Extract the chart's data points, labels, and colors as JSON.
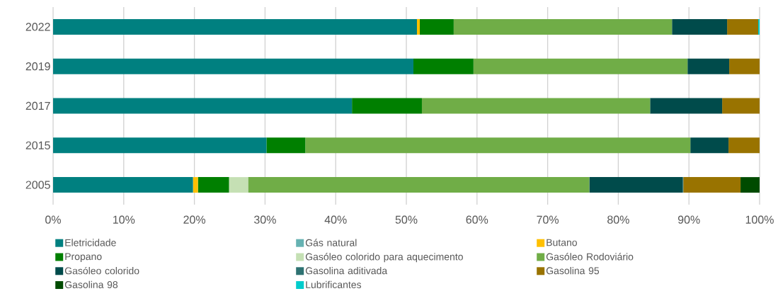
{
  "chart_data": {
    "type": "bar",
    "orientation": "horizontal",
    "stacked": true,
    "categories": [
      "2022",
      "2019",
      "2017",
      "2015",
      "2005"
    ],
    "series": [
      {
        "name": "Eletricidade",
        "color": "#008080",
        "values": [
          51.5,
          51.0,
          42.3,
          30.2,
          19.8
        ]
      },
      {
        "name": "Gás natural",
        "color": "#66b2b2",
        "values": [
          null,
          null,
          null,
          null,
          null
        ]
      },
      {
        "name": "Butano",
        "color": "#ffc000",
        "values": [
          0.4,
          null,
          null,
          null,
          0.7
        ]
      },
      {
        "name": "Propano",
        "color": "#007f00",
        "values": [
          4.8,
          8.5,
          9.9,
          5.5,
          4.4
        ]
      },
      {
        "name": "Gasóleo colorido para aquecimento",
        "color": "#c5e0b4",
        "values": [
          null,
          null,
          null,
          null,
          2.7
        ]
      },
      {
        "name": "Gasóleo Rodoviário",
        "color": "#70ad47",
        "values": [
          30.9,
          30.3,
          32.3,
          54.5,
          48.3
        ]
      },
      {
        "name": "Gasóleo colorido",
        "color": "#004b4b",
        "values": [
          7.8,
          5.9,
          10.2,
          5.4,
          13.2
        ]
      },
      {
        "name": "Gasolina aditivada",
        "color": "#2e7272",
        "values": [
          null,
          null,
          null,
          null,
          0.1
        ]
      },
      {
        "name": "Gasolina 95",
        "color": "#997300",
        "values": [
          4.4,
          4.3,
          5.3,
          4.4,
          8.1
        ]
      },
      {
        "name": "Gasolina 98",
        "color": "#004b00",
        "values": [
          null,
          null,
          null,
          null,
          2.7
        ]
      },
      {
        "name": "Lubrificantes",
        "color": "#00cccc",
        "values": [
          0.2,
          null,
          null,
          null,
          null
        ]
      }
    ],
    "xlim": [
      0,
      100
    ],
    "xticks": [
      {
        "value": 0,
        "label": "0%"
      },
      {
        "value": 10,
        "label": "10%"
      },
      {
        "value": 20,
        "label": "20%"
      },
      {
        "value": 30,
        "label": "30%"
      },
      {
        "value": 40,
        "label": "40%"
      },
      {
        "value": 50,
        "label": "50%"
      },
      {
        "value": 60,
        "label": "60%"
      },
      {
        "value": 70,
        "label": "70%"
      },
      {
        "value": 80,
        "label": "80%"
      },
      {
        "value": 90,
        "label": "90%"
      },
      {
        "value": 100,
        "label": "100%"
      }
    ],
    "grid": "x",
    "legend": "bottom"
  }
}
